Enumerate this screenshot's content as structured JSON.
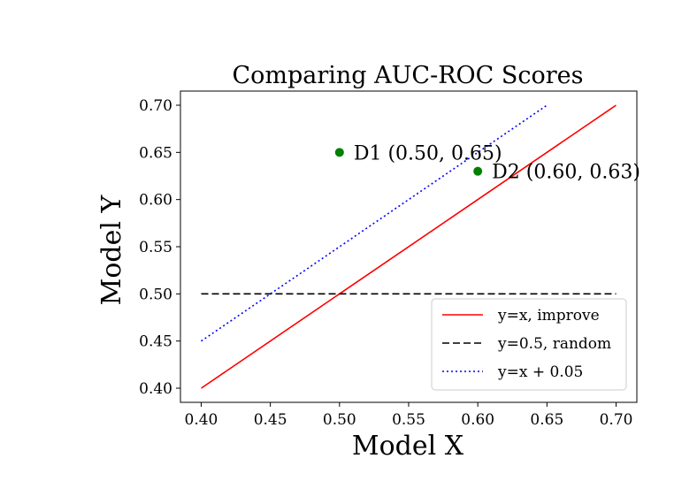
{
  "chart_data": {
    "type": "line",
    "title": "Comparing AUC-ROC Scores",
    "xlabel": "Model X",
    "ylabel": "Model Y",
    "xlim": [
      0.385,
      0.715
    ],
    "ylim": [
      0.385,
      0.715
    ],
    "xticks": [
      "0.40",
      "0.45",
      "0.50",
      "0.55",
      "0.60",
      "0.65",
      "0.70"
    ],
    "yticks": [
      "0.40",
      "0.45",
      "0.50",
      "0.55",
      "0.60",
      "0.65",
      "0.70"
    ],
    "grid": false,
    "legend_position": "lower-right",
    "series": [
      {
        "name": "y=x, improve",
        "style": "solid",
        "color": "#ff0000",
        "x": [
          0.4,
          0.7
        ],
        "y": [
          0.4,
          0.7
        ]
      },
      {
        "name": "y=0.5, random",
        "style": "dashed",
        "color": "#000000",
        "x": [
          0.4,
          0.7
        ],
        "y": [
          0.5,
          0.5
        ]
      },
      {
        "name": "y=x + 0.05",
        "style": "dotted",
        "color": "#0000ff",
        "x": [
          0.4,
          0.65
        ],
        "y": [
          0.45,
          0.7
        ]
      }
    ],
    "points": [
      {
        "label": "D1 (0.50, 0.65)",
        "x": 0.5,
        "y": 0.65,
        "color": "#008000"
      },
      {
        "label": "D2 (0.60, 0.63)",
        "x": 0.6,
        "y": 0.63,
        "color": "#008000"
      }
    ]
  }
}
